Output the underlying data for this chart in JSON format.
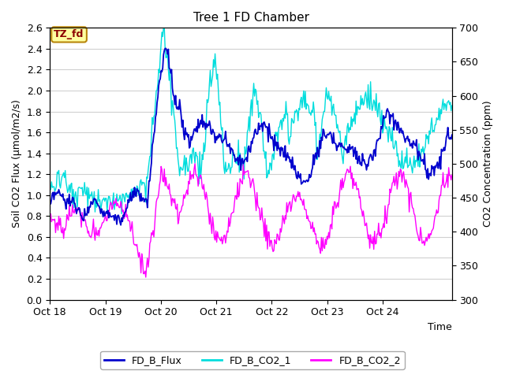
{
  "title": "Tree 1 FD Chamber",
  "xlabel": "Time",
  "ylabel_left": "Soil CO2 Flux (μmol/m2/s)",
  "ylabel_right": "CO2 Concentration (ppm)",
  "ylim_left": [
    0.0,
    2.6
  ],
  "ylim_right": [
    300,
    700
  ],
  "yticks_left": [
    0.0,
    0.2,
    0.4,
    0.6,
    0.8,
    1.0,
    1.2,
    1.4,
    1.6,
    1.8,
    2.0,
    2.2,
    2.4,
    2.6
  ],
  "yticks_right": [
    300,
    350,
    400,
    450,
    500,
    550,
    600,
    650,
    700
  ],
  "xtick_labels": [
    "Oct 18",
    "Oct 19",
    "Oct 20",
    "Oct 21",
    "Oct 22",
    "Oct 23",
    "Oct 24"
  ],
  "xtick_positions": [
    0,
    1,
    2,
    3,
    4,
    5,
    6
  ],
  "xlim": [
    0,
    7.25
  ],
  "colors": {
    "flux": "#0000CD",
    "co2_1": "#00DDDD",
    "co2_2": "#FF00FF"
  },
  "legend_labels": [
    "FD_B_Flux",
    "FD_B_CO2_1",
    "FD_B_CO2_2"
  ],
  "annotation_text": "TZ_fd",
  "annotation_color": "#8B0000",
  "annotation_bg": "#FFFFA0",
  "annotation_edge": "#B8860B",
  "fig_bg": "#FFFFFF",
  "plot_bg": "#FFFFFF",
  "grid_color": "#D0D0D0",
  "linewidth": 1.0,
  "n_points": 500
}
